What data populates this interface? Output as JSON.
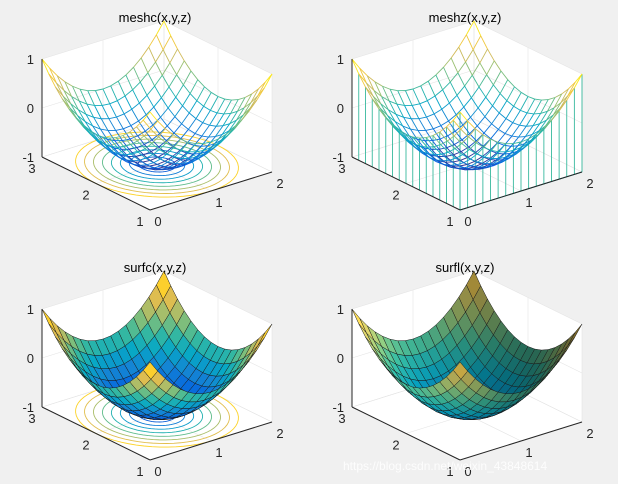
{
  "watermark": "https://blog.csdn.net/weixin_43848614",
  "chart_data": [
    {
      "type": "meshc",
      "title": "meshc(x,y,z)",
      "function": "z = x^2 + y^2 - 1, normalized domain",
      "xticks": [
        "0",
        "1",
        "2"
      ],
      "yticks": [
        "1",
        "2",
        "3"
      ],
      "zticks": [
        "-1",
        "0",
        "1"
      ],
      "zlim": [
        -1,
        1
      ],
      "grid": true,
      "contour_levels": 8,
      "style": "wireframe colored by height"
    },
    {
      "type": "meshz",
      "title": "meshz(x,y,z)",
      "xticks": [
        "0",
        "1",
        "2"
      ],
      "yticks": [
        "1",
        "2",
        "3"
      ],
      "zticks": [
        "-1",
        "0",
        "1"
      ],
      "zlim": [
        -1,
        1
      ],
      "grid": true,
      "curtain": true,
      "style": "wireframe with curtain to z=-1"
    },
    {
      "type": "surfc",
      "title": "surfc(x,y,z)",
      "xticks": [
        "0",
        "1",
        "2"
      ],
      "yticks": [
        "1",
        "2",
        "3"
      ],
      "zticks": [
        "-1",
        "0",
        "1"
      ],
      "zlim": [
        -1,
        1
      ],
      "grid": true,
      "contour_levels": 8,
      "style": "faceted surface colored by height"
    },
    {
      "type": "surfl",
      "title": "surfl(x,y,z)",
      "xticks": [
        "0",
        "1",
        "2"
      ],
      "yticks": [
        "1",
        "2",
        "3"
      ],
      "zticks": [
        "-1",
        "0",
        "1"
      ],
      "zlim": [
        -1,
        1
      ],
      "grid": true,
      "lighting": true,
      "style": "faceted lighted surface"
    }
  ]
}
